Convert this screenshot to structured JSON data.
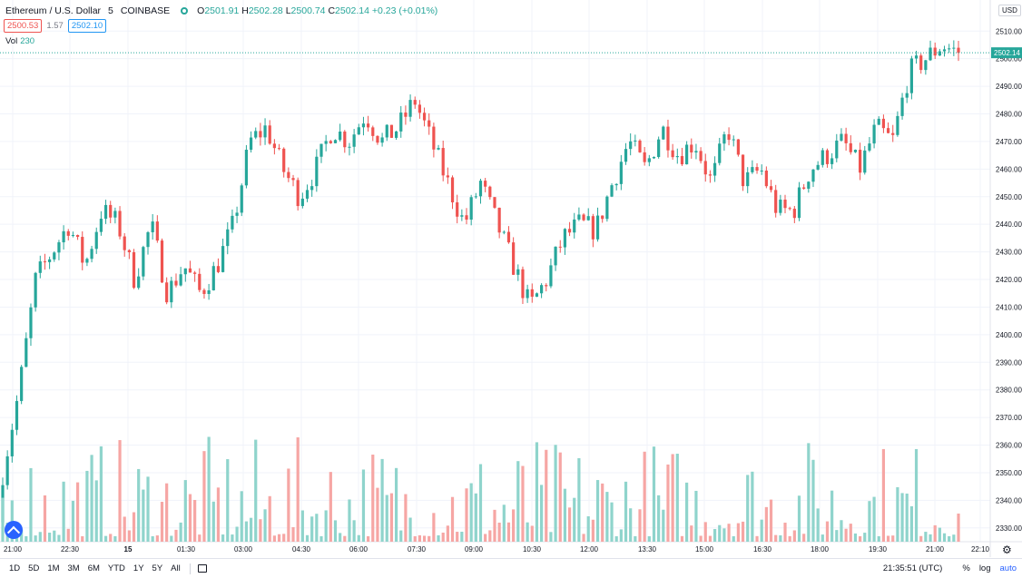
{
  "header": {
    "symbol_title": "Ethereum / U.S. Dollar",
    "interval": "5",
    "exchange": "COINBASE",
    "ohlc": {
      "o_label": "O",
      "o": "2501.91",
      "h_label": "H",
      "h": "2502.28",
      "l_label": "L",
      "l": "2500.74",
      "c_label": "C",
      "c": "2502.14",
      "change": "+0.23 (+0.01%)"
    },
    "bid": "2500.53",
    "spread": "1.57",
    "ask": "2502.10",
    "vol_label": "Vol",
    "vol_value": "230"
  },
  "axis": {
    "currency": "USD",
    "last_price_label": "2502.14"
  },
  "bottom": {
    "ranges": [
      "1D",
      "5D",
      "1M",
      "3M",
      "6M",
      "YTD",
      "1Y",
      "5Y",
      "All"
    ],
    "clock": "21:35:51 (UTC)",
    "percent": "%",
    "log": "log",
    "auto": "auto"
  },
  "colors": {
    "up": "#26a69a",
    "down": "#ef5350",
    "vol_up": "#8fd4cc",
    "vol_down": "#f6a6a4",
    "last_price": "#26a69a"
  },
  "chart_data": {
    "type": "candlestick",
    "title": "Ethereum / U.S. Dollar",
    "ylim": [
      2325,
      2516
    ],
    "y_ticks": [
      2330,
      2340,
      2350,
      2360,
      2370,
      2380,
      2390,
      2400,
      2410,
      2420,
      2430,
      2440,
      2450,
      2460,
      2470,
      2480,
      2490,
      2500,
      2510
    ],
    "x_ticks": [
      "21:00",
      "22:30",
      "15",
      "01:30",
      "03:00",
      "04:30",
      "06:00",
      "07:30",
      "09:00",
      "10:30",
      "12:00",
      "13:30",
      "15:00",
      "16:30",
      "18:00",
      "19:30",
      "21:00",
      "22:10"
    ],
    "last_price": 2502.14,
    "grid": true,
    "close_anchors": [
      2350,
      2380,
      2420,
      2430,
      2440,
      2425,
      2445,
      2440,
      2420,
      2440,
      2415,
      2425,
      2415,
      2425,
      2440,
      2470,
      2475,
      2460,
      2450,
      2460,
      2475,
      2470,
      2480,
      2470,
      2475,
      2485,
      2470,
      2455,
      2440,
      2455,
      2440,
      2425,
      2410,
      2420,
      2435,
      2440,
      2438,
      2455,
      2470,
      2460,
      2475,
      2465,
      2470,
      2455,
      2475,
      2455,
      2460,
      2445,
      2445,
      2460,
      2465,
      2470,
      2460,
      2475,
      2470,
      2495,
      2500,
      2505,
      2502
    ],
    "volume_ylim": [
      0,
      2000
    ],
    "volume_note": "volume bars shown at bottom, colored by candle direction"
  }
}
